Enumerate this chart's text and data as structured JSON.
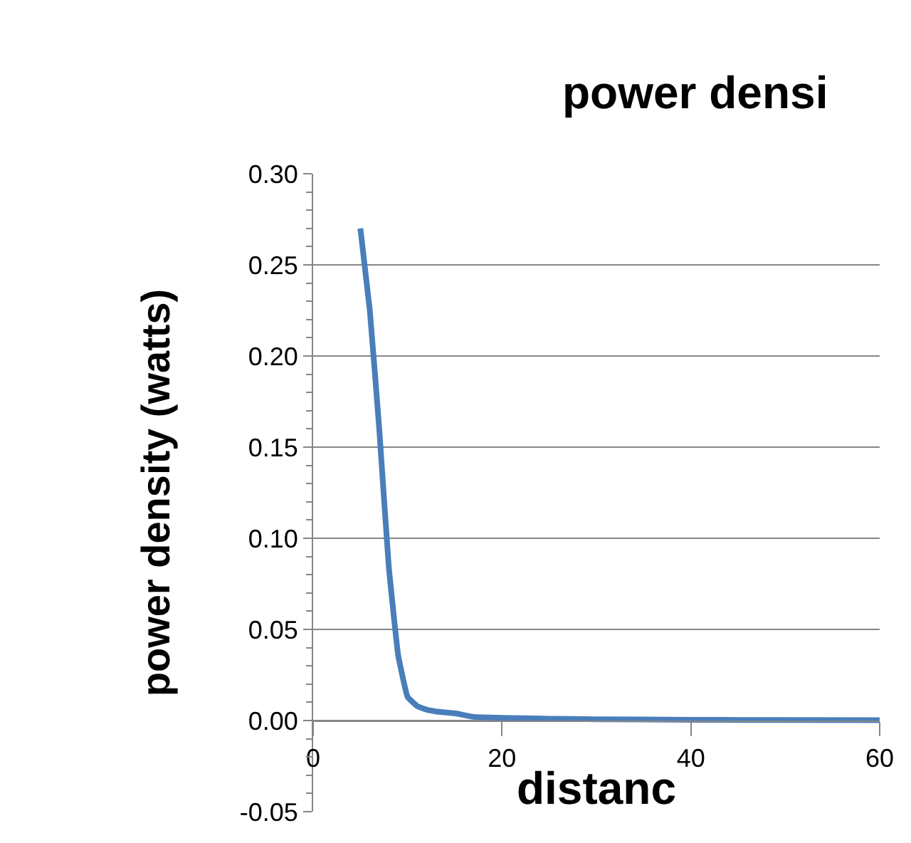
{
  "chart_data": {
    "type": "line",
    "title": "power densi",
    "xlabel": "distanc",
    "ylabel": "power density (watts)",
    "series": [
      {
        "color": "#4a7ebb",
        "x": [
          5,
          6,
          7,
          8,
          9,
          10,
          11,
          12,
          13,
          15,
          17,
          20,
          25,
          30,
          40,
          50,
          60
        ],
        "values": [
          0.27,
          0.225,
          0.16,
          0.085,
          0.036,
          0.013,
          0.008,
          0.006,
          0.005,
          0.004,
          0.002,
          0.0015,
          0.001,
          0.0007,
          0.0004,
          0.0003,
          0.0002
        ]
      }
    ],
    "xlim": [
      0,
      60
    ],
    "xticks": [
      0,
      20,
      40,
      60
    ],
    "ylim": [
      -0.05,
      0.3
    ],
    "yticks": [
      {
        "value": -0.05,
        "label": "-0.05"
      },
      {
        "value": 0,
        "label": "0.00"
      },
      {
        "value": 0.05,
        "label": "0.05"
      },
      {
        "value": 0.1,
        "label": "0.10"
      },
      {
        "value": 0.15,
        "label": "0.15"
      },
      {
        "value": 0.2,
        "label": "0.20"
      },
      {
        "value": 0.25,
        "label": "0.25"
      },
      {
        "value": 0.3,
        "label": "0.30"
      }
    ],
    "grid": "y",
    "legend": false,
    "marker": "none",
    "line_style": "solid"
  }
}
